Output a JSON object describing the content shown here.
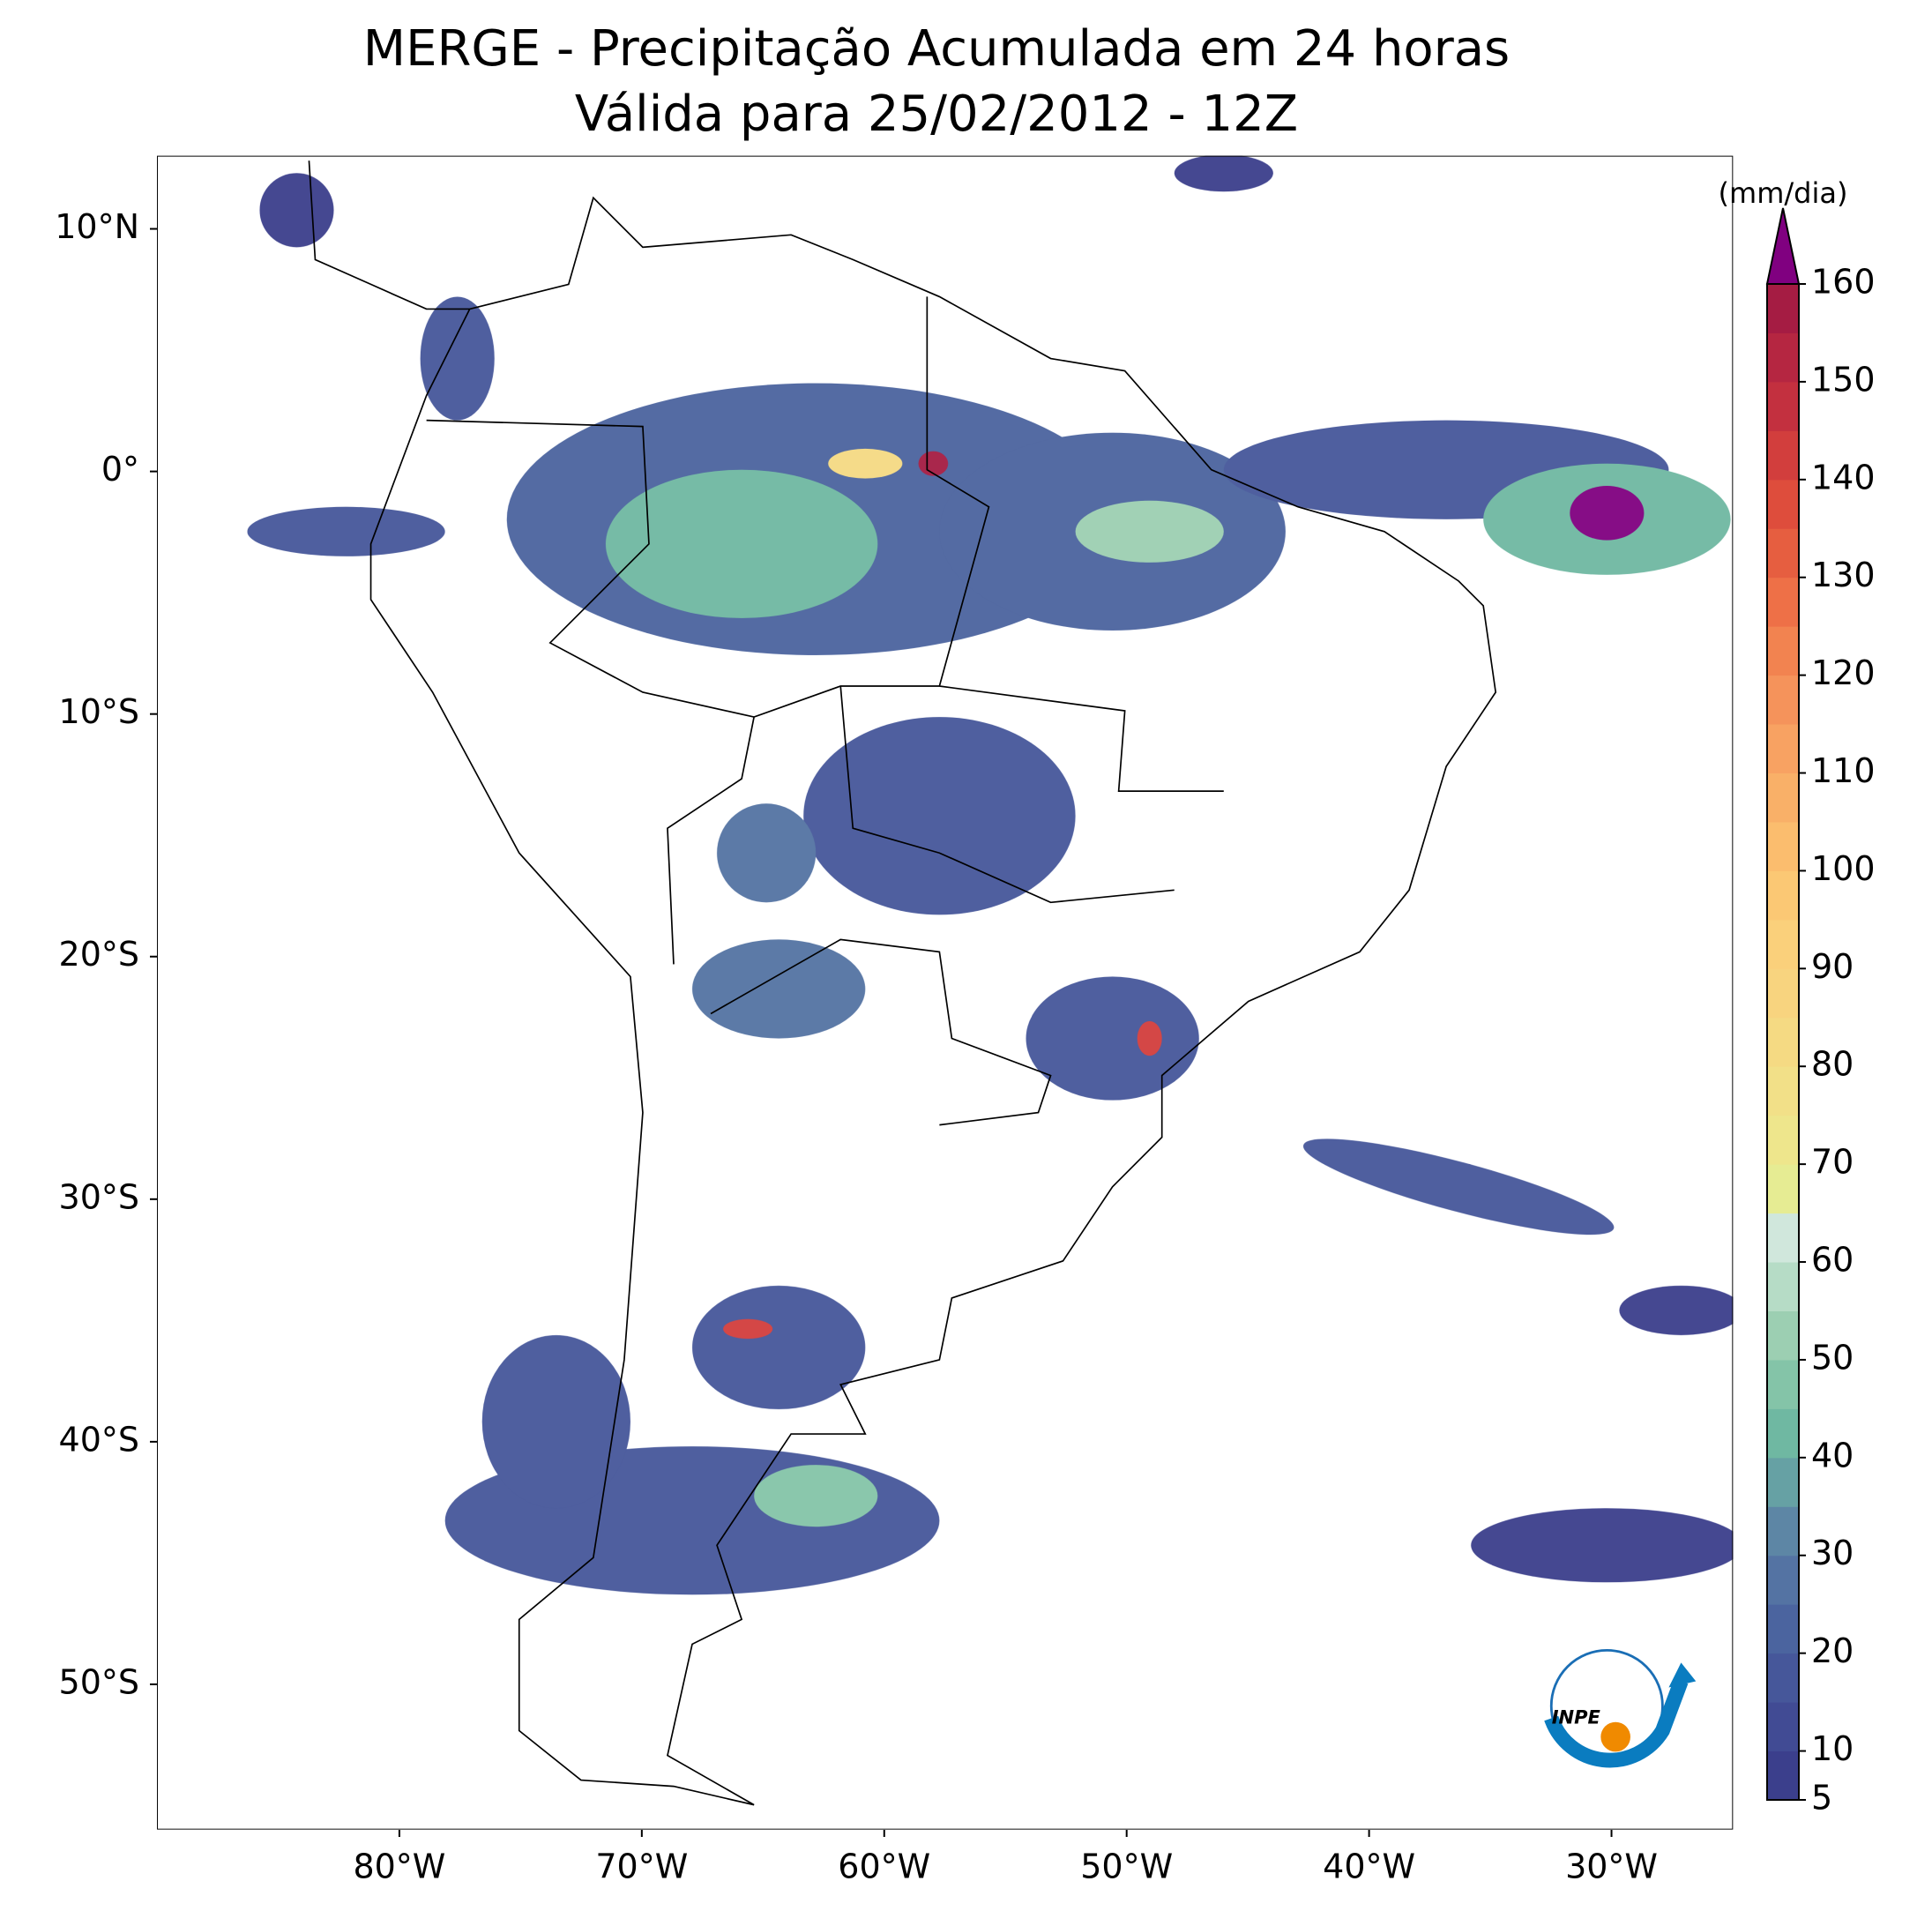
{
  "chart_data": {
    "type": "map",
    "title": "MERGE - Precipitação Acumulada em 24 horas",
    "subtitle": "Válida para 25/02/2012 - 12Z",
    "xlim": [
      -90,
      -25
    ],
    "ylim": [
      -56,
      13
    ],
    "xticks": [
      {
        "value": -80,
        "label": "80°W"
      },
      {
        "value": -70,
        "label": "70°W"
      },
      {
        "value": -60,
        "label": "60°W"
      },
      {
        "value": -50,
        "label": "50°W"
      },
      {
        "value": -40,
        "label": "40°W"
      },
      {
        "value": -30,
        "label": "30°W"
      }
    ],
    "yticks": [
      {
        "value": 10,
        "label": "10°N"
      },
      {
        "value": 0,
        "label": "0°"
      },
      {
        "value": -10,
        "label": "10°S"
      },
      {
        "value": -20,
        "label": "20°S"
      },
      {
        "value": -30,
        "label": "30°S"
      },
      {
        "value": -40,
        "label": "40°S"
      },
      {
        "value": -50,
        "label": "50°S"
      }
    ],
    "colorbar": {
      "label": "(mm/dia)",
      "lim": [
        5,
        160
      ],
      "ticks": [
        5,
        10,
        20,
        30,
        40,
        50,
        60,
        70,
        80,
        90,
        100,
        110,
        120,
        130,
        140,
        150,
        160
      ],
      "levels": [
        5,
        10,
        15,
        20,
        25,
        30,
        35,
        40,
        45,
        50,
        55,
        60,
        65,
        70,
        75,
        80,
        85,
        90,
        95,
        100,
        105,
        110,
        115,
        120,
        125,
        130,
        135,
        140,
        145,
        150,
        155,
        160
      ],
      "colors": [
        "#3b3f8c",
        "#414b94",
        "#46579a",
        "#4b649f",
        "#5473a3",
        "#5d86a5",
        "#66a1a4",
        "#6fb8a2",
        "#84c4a8",
        "#9ccfb2",
        "#b6dcc6",
        "#d0e7dc",
        "#e6ec93",
        "#eee68c",
        "#f2e088",
        "#f5da83",
        "#f8d47f",
        "#fad07b",
        "#fbc874",
        "#fbbd6e",
        "#f9b068",
        "#f8a262",
        "#f5935b",
        "#f28350",
        "#ee7047",
        "#e65e40",
        "#de4d3c",
        "#d23e3d",
        "#c3303f",
        "#b52641",
        "#a51c43"
      ],
      "extend_color": "#800080"
    }
  },
  "logo": {
    "text": "INPE"
  }
}
